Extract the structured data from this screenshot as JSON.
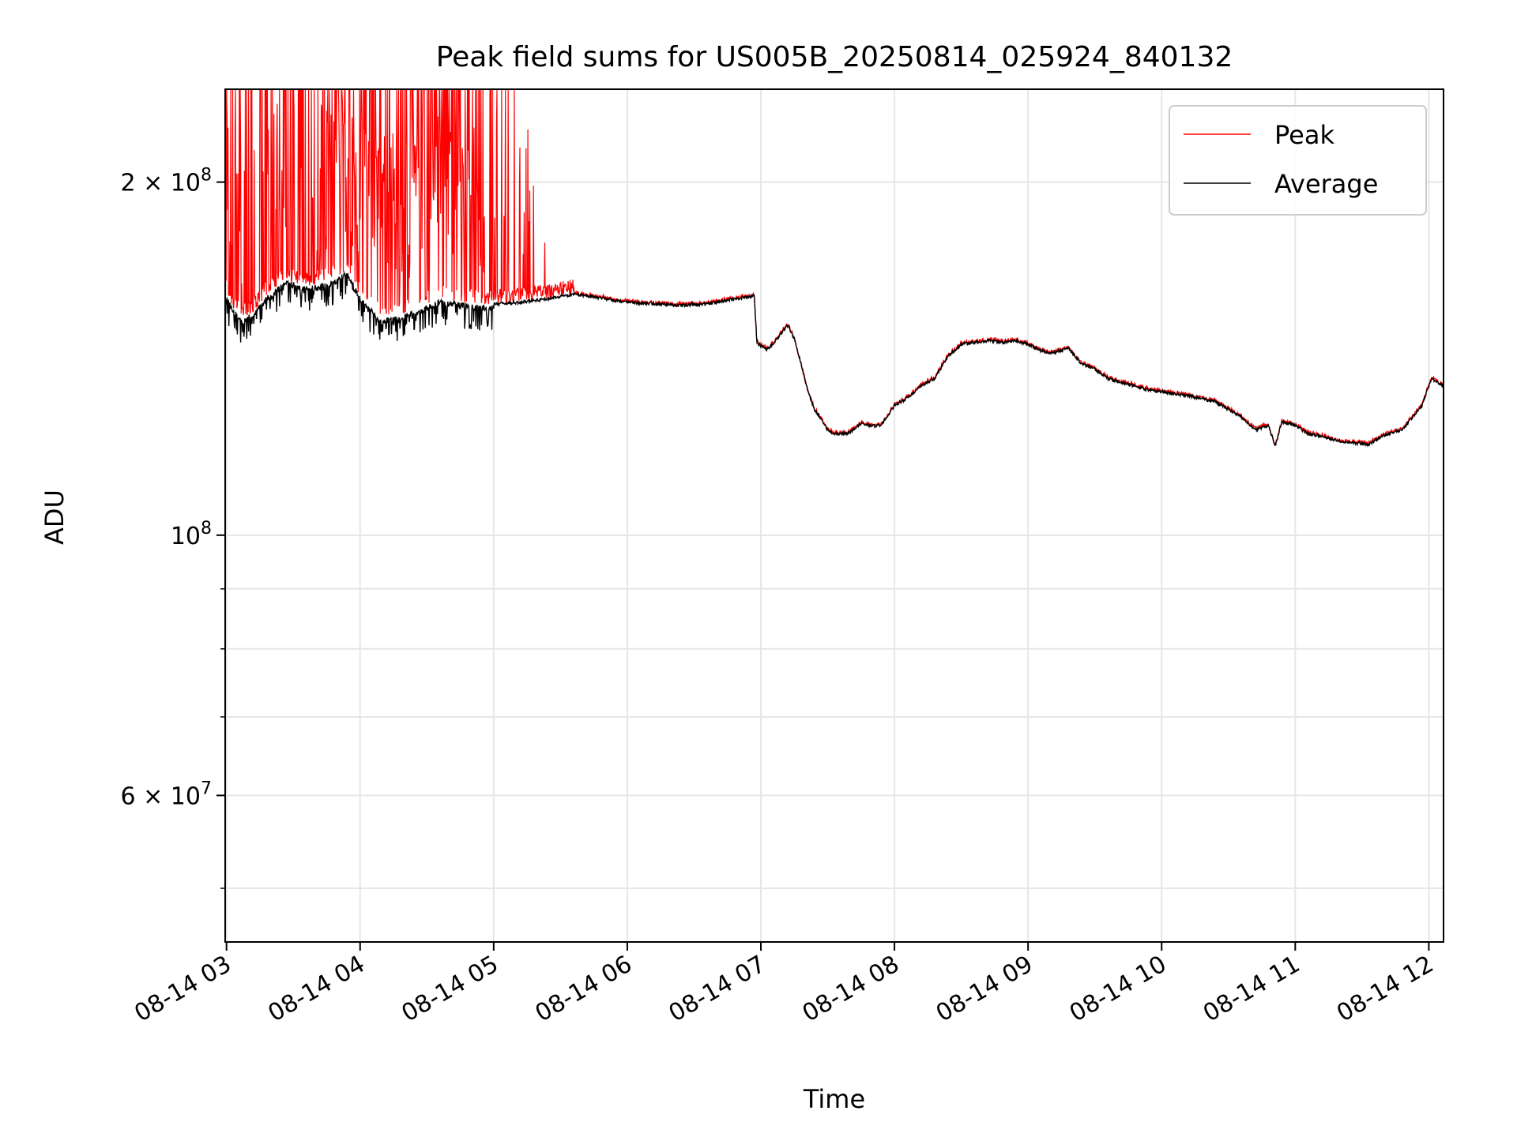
{
  "chart_data": {
    "type": "line",
    "title": "Peak field sums for US005B_20250814_025924_840132",
    "xlabel": "Time",
    "ylabel": "ADU",
    "yscale": "log",
    "ylim": [
      45000000,
      240000000
    ],
    "xlim_hours": [
      2.99,
      12.11
    ],
    "grid": true,
    "legend_position": "upper right",
    "x_ticks": [
      {
        "hour": 3,
        "label": "08-14 03"
      },
      {
        "hour": 4,
        "label": "08-14 04"
      },
      {
        "hour": 5,
        "label": "08-14 05"
      },
      {
        "hour": 6,
        "label": "08-14 06"
      },
      {
        "hour": 7,
        "label": "08-14 07"
      },
      {
        "hour": 8,
        "label": "08-14 08"
      },
      {
        "hour": 9,
        "label": "08-14 09"
      },
      {
        "hour": 10,
        "label": "08-14 10"
      },
      {
        "hour": 11,
        "label": "08-14 11"
      },
      {
        "hour": 12,
        "label": "08-14 12"
      }
    ],
    "y_major_ticks": [
      {
        "value": 200000000,
        "base": "2 × 10",
        "exp": "8"
      },
      {
        "value": 100000000,
        "base": "10",
        "exp": "8"
      },
      {
        "value": 60000000,
        "base": "6 × 10",
        "exp": "7"
      }
    ],
    "y_minor_ticks": [
      50000000,
      70000000,
      80000000,
      90000000
    ],
    "series": [
      {
        "name": "Peak",
        "color": "#ff0000",
        "spike_window_hours": [
          2.99,
          5.6
        ],
        "spike_max": 240000000
      },
      {
        "name": "Average",
        "color": "#000000",
        "x_hours": [
          2.99,
          3.05,
          3.12,
          3.2,
          3.3,
          3.45,
          3.6,
          3.75,
          3.9,
          4.0,
          4.15,
          4.3,
          4.45,
          4.6,
          4.75,
          4.9,
          5.05,
          5.2,
          5.4,
          5.6,
          5.7,
          5.85,
          6.0,
          6.2,
          6.4,
          6.6,
          6.8,
          6.95,
          6.97,
          7.0,
          7.05,
          7.1,
          7.2,
          7.25,
          7.3,
          7.35,
          7.4,
          7.5,
          7.55,
          7.65,
          7.75,
          7.82,
          7.9,
          8.0,
          8.1,
          8.2,
          8.3,
          8.4,
          8.5,
          8.6,
          8.7,
          8.8,
          8.9,
          9.0,
          9.1,
          9.2,
          9.3,
          9.4,
          9.5,
          9.6,
          9.7,
          9.8,
          9.9,
          10.0,
          10.2,
          10.4,
          10.5,
          10.6,
          10.7,
          10.8,
          10.85,
          10.9,
          11.0,
          11.1,
          11.2,
          11.3,
          11.4,
          11.55,
          11.65,
          11.8,
          11.95,
          12.02,
          12.11
        ],
        "values": [
          161000000,
          156000000,
          153000000,
          155000000,
          160000000,
          165000000,
          163000000,
          164000000,
          168000000,
          160000000,
          153000000,
          154000000,
          156000000,
          159000000,
          158000000,
          157000000,
          157500000,
          158000000,
          159000000,
          160500000,
          160000000,
          159000000,
          158000000,
          157500000,
          157000000,
          157500000,
          159000000,
          160000000,
          146000000,
          145000000,
          144000000,
          146000000,
          151000000,
          147000000,
          140000000,
          133000000,
          128000000,
          123000000,
          122000000,
          122000000,
          124500000,
          124000000,
          124000000,
          129000000,
          131000000,
          134000000,
          136000000,
          142000000,
          145500000,
          146000000,
          146500000,
          146000000,
          146500000,
          145500000,
          143500000,
          143000000,
          144500000,
          140000000,
          138500000,
          136000000,
          135000000,
          134000000,
          133000000,
          132500000,
          131500000,
          130000000,
          128000000,
          126000000,
          123000000,
          124000000,
          119000000,
          125000000,
          124000000,
          122000000,
          121500000,
          120500000,
          120000000,
          119500000,
          121500000,
          123000000,
          129000000,
          136000000,
          134000000
        ]
      }
    ]
  }
}
